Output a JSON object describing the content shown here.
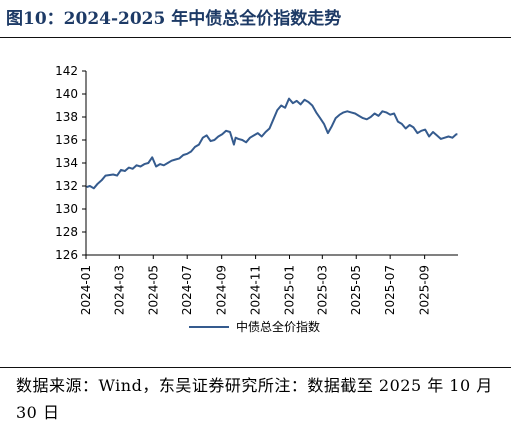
{
  "figure": {
    "title": "图10：2024-2025 年中债总全价指数走势",
    "source_note": "数据来源：Wind，东吴证券研究所注：数据截至 2025 年 10 月 30 日"
  },
  "colors": {
    "line": "#355b8e",
    "title": "#1d3a66"
  },
  "chart_data": {
    "type": "line",
    "title": "",
    "xlabel": "",
    "ylabel": "",
    "ylim": [
      126,
      142
    ],
    "yticks": [
      126,
      128,
      130,
      132,
      134,
      136,
      138,
      140,
      142
    ],
    "xrange": [
      "2024-01-01",
      "2025-10-31"
    ],
    "xticks": [
      "2024-01",
      "2024-03",
      "2024-05",
      "2024-07",
      "2024-09",
      "2024-11",
      "2025-01",
      "2025-03",
      "2025-05",
      "2025-07",
      "2025-09"
    ],
    "grid": false,
    "legend_position": "bottom-center",
    "series": [
      {
        "name": "中债总全价指数",
        "x": [
          "2024-01-02",
          "2024-01-08",
          "2024-01-15",
          "2024-01-22",
          "2024-01-29",
          "2024-02-05",
          "2024-02-19",
          "2024-02-26",
          "2024-03-04",
          "2024-03-11",
          "2024-03-18",
          "2024-03-25",
          "2024-04-01",
          "2024-04-08",
          "2024-04-15",
          "2024-04-22",
          "2024-04-29",
          "2024-05-06",
          "2024-05-13",
          "2024-05-20",
          "2024-05-27",
          "2024-06-03",
          "2024-06-10",
          "2024-06-17",
          "2024-06-24",
          "2024-07-01",
          "2024-07-08",
          "2024-07-15",
          "2024-07-22",
          "2024-07-29",
          "2024-08-05",
          "2024-08-12",
          "2024-08-19",
          "2024-08-26",
          "2024-09-02",
          "2024-09-09",
          "2024-09-16",
          "2024-09-23",
          "2024-09-26",
          "2024-10-01",
          "2024-10-08",
          "2024-10-15",
          "2024-10-22",
          "2024-10-29",
          "2024-11-05",
          "2024-11-12",
          "2024-11-19",
          "2024-11-26",
          "2024-12-03",
          "2024-12-10",
          "2024-12-17",
          "2024-12-24",
          "2024-12-31",
          "2025-01-07",
          "2025-01-14",
          "2025-01-21",
          "2025-01-28",
          "2025-02-04",
          "2025-02-11",
          "2025-02-18",
          "2025-02-25",
          "2025-03-04",
          "2025-03-11",
          "2025-03-18",
          "2025-03-25",
          "2025-04-01",
          "2025-04-08",
          "2025-04-15",
          "2025-04-22",
          "2025-04-29",
          "2025-05-06",
          "2025-05-13",
          "2025-05-20",
          "2025-05-27",
          "2025-06-03",
          "2025-06-10",
          "2025-06-17",
          "2025-06-24",
          "2025-07-01",
          "2025-07-08",
          "2025-07-15",
          "2025-07-22",
          "2025-07-29",
          "2025-08-05",
          "2025-08-12",
          "2025-08-19",
          "2025-08-26",
          "2025-09-02",
          "2025-09-09",
          "2025-09-16",
          "2025-09-23",
          "2025-09-30",
          "2025-10-07",
          "2025-10-14",
          "2025-10-21",
          "2025-10-28",
          "2025-10-30"
        ],
        "values": [
          131.9,
          132.0,
          131.8,
          132.2,
          132.5,
          132.9,
          133.0,
          132.9,
          133.4,
          133.3,
          133.6,
          133.5,
          133.8,
          133.7,
          133.9,
          134.0,
          134.5,
          133.7,
          133.9,
          133.8,
          134.0,
          134.2,
          134.3,
          134.4,
          134.7,
          134.8,
          135.0,
          135.4,
          135.6,
          136.2,
          136.4,
          135.9,
          136.0,
          136.3,
          136.5,
          136.8,
          136.7,
          135.6,
          136.2,
          136.1,
          136.0,
          135.8,
          136.2,
          136.4,
          136.6,
          136.3,
          136.7,
          137.0,
          137.8,
          138.6,
          139.0,
          138.8,
          139.6,
          139.2,
          139.4,
          139.1,
          139.5,
          139.3,
          139.0,
          138.4,
          137.9,
          137.4,
          136.6,
          137.2,
          137.9,
          138.2,
          138.4,
          138.5,
          138.4,
          138.3,
          138.1,
          137.9,
          137.8,
          138.0,
          138.3,
          138.1,
          138.5,
          138.4,
          138.2,
          138.3,
          137.6,
          137.4,
          137.0,
          137.3,
          137.1,
          136.6,
          136.8,
          136.9,
          136.3,
          136.7,
          136.4,
          136.1,
          136.2,
          136.3,
          136.2,
          136.5,
          136.5
        ]
      }
    ]
  }
}
